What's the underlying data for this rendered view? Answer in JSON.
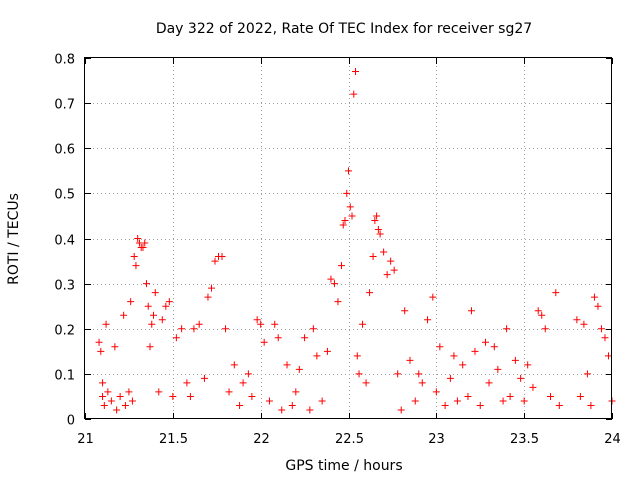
{
  "chart_data": {
    "type": "scatter",
    "title": "Day 322 of 2022, Rate Of TEC Index for receiver sg27",
    "xlabel": "GPS time / hours",
    "ylabel": "ROTI / TECUs",
    "xlim": [
      21,
      24
    ],
    "ylim": [
      0,
      0.8
    ],
    "xticks": [
      21,
      21.5,
      22,
      22.5,
      23,
      23.5,
      24
    ],
    "xtick_labels": [
      "21",
      "21.5",
      "22",
      "22.5",
      "23",
      "23.5",
      "24"
    ],
    "yticks": [
      0,
      0.1,
      0.2,
      0.3,
      0.4,
      0.5,
      0.6,
      0.7,
      0.8
    ],
    "ytick_labels": [
      "0",
      "0.1",
      "0.2",
      "0.3",
      "0.4",
      "0.5",
      "0.6",
      "0.7",
      "0.8"
    ],
    "grid": true,
    "marker": "plus",
    "color": "#ff0000",
    "series": [
      {
        "name": "ROTI",
        "points": [
          [
            21.08,
            0.17
          ],
          [
            21.09,
            0.15
          ],
          [
            21.1,
            0.08
          ],
          [
            21.1,
            0.05
          ],
          [
            21.11,
            0.03
          ],
          [
            21.12,
            0.21
          ],
          [
            21.13,
            0.06
          ],
          [
            21.15,
            0.04
          ],
          [
            21.17,
            0.16
          ],
          [
            21.18,
            0.02
          ],
          [
            21.2,
            0.05
          ],
          [
            21.22,
            0.23
          ],
          [
            21.23,
            0.03
          ],
          [
            21.25,
            0.06
          ],
          [
            21.26,
            0.26
          ],
          [
            21.27,
            0.04
          ],
          [
            21.28,
            0.36
          ],
          [
            21.29,
            0.34
          ],
          [
            21.3,
            0.4
          ],
          [
            21.31,
            0.39
          ],
          [
            21.32,
            0.38
          ],
          [
            21.33,
            0.38
          ],
          [
            21.34,
            0.39
          ],
          [
            21.35,
            0.3
          ],
          [
            21.36,
            0.25
          ],
          [
            21.37,
            0.16
          ],
          [
            21.38,
            0.21
          ],
          [
            21.39,
            0.23
          ],
          [
            21.4,
            0.28
          ],
          [
            21.42,
            0.06
          ],
          [
            21.44,
            0.22
          ],
          [
            21.46,
            0.25
          ],
          [
            21.48,
            0.26
          ],
          [
            21.5,
            0.05
          ],
          [
            21.52,
            0.18
          ],
          [
            21.55,
            0.2
          ],
          [
            21.58,
            0.08
          ],
          [
            21.6,
            0.05
          ],
          [
            21.62,
            0.2
          ],
          [
            21.65,
            0.21
          ],
          [
            21.68,
            0.09
          ],
          [
            21.7,
            0.27
          ],
          [
            21.72,
            0.29
          ],
          [
            21.74,
            0.35
          ],
          [
            21.76,
            0.36
          ],
          [
            21.78,
            0.36
          ],
          [
            21.8,
            0.2
          ],
          [
            21.82,
            0.06
          ],
          [
            21.85,
            0.12
          ],
          [
            21.88,
            0.03
          ],
          [
            21.9,
            0.08
          ],
          [
            21.93,
            0.1
          ],
          [
            21.95,
            0.05
          ],
          [
            21.98,
            0.22
          ],
          [
            22.0,
            0.21
          ],
          [
            22.02,
            0.17
          ],
          [
            22.05,
            0.04
          ],
          [
            22.08,
            0.21
          ],
          [
            22.1,
            0.18
          ],
          [
            22.12,
            0.02
          ],
          [
            22.15,
            0.12
          ],
          [
            22.18,
            0.03
          ],
          [
            22.2,
            0.06
          ],
          [
            22.22,
            0.11
          ],
          [
            22.25,
            0.18
          ],
          [
            22.28,
            0.02
          ],
          [
            22.3,
            0.2
          ],
          [
            22.32,
            0.14
          ],
          [
            22.35,
            0.04
          ],
          [
            22.38,
            0.15
          ],
          [
            22.4,
            0.31
          ],
          [
            22.42,
            0.3
          ],
          [
            22.44,
            0.26
          ],
          [
            22.46,
            0.34
          ],
          [
            22.47,
            0.43
          ],
          [
            22.48,
            0.44
          ],
          [
            22.49,
            0.5
          ],
          [
            22.5,
            0.55
          ],
          [
            22.51,
            0.47
          ],
          [
            22.52,
            0.45
          ],
          [
            22.53,
            0.72
          ],
          [
            22.54,
            0.77
          ],
          [
            22.55,
            0.14
          ],
          [
            22.56,
            0.1
          ],
          [
            22.58,
            0.21
          ],
          [
            22.6,
            0.08
          ],
          [
            22.62,
            0.28
          ],
          [
            22.64,
            0.36
          ],
          [
            22.65,
            0.44
          ],
          [
            22.66,
            0.45
          ],
          [
            22.67,
            0.42
          ],
          [
            22.68,
            0.41
          ],
          [
            22.7,
            0.37
          ],
          [
            22.72,
            0.32
          ],
          [
            22.74,
            0.35
          ],
          [
            22.76,
            0.33
          ],
          [
            22.78,
            0.1
          ],
          [
            22.8,
            0.02
          ],
          [
            22.82,
            0.24
          ],
          [
            22.85,
            0.13
          ],
          [
            22.88,
            0.04
          ],
          [
            22.9,
            0.1
          ],
          [
            22.92,
            0.08
          ],
          [
            22.95,
            0.22
          ],
          [
            22.98,
            0.27
          ],
          [
            23.0,
            0.06
          ],
          [
            23.02,
            0.16
          ],
          [
            23.05,
            0.03
          ],
          [
            23.08,
            0.09
          ],
          [
            23.1,
            0.14
          ],
          [
            23.12,
            0.04
          ],
          [
            23.15,
            0.12
          ],
          [
            23.18,
            0.05
          ],
          [
            23.2,
            0.24
          ],
          [
            23.22,
            0.15
          ],
          [
            23.25,
            0.03
          ],
          [
            23.28,
            0.17
          ],
          [
            23.3,
            0.08
          ],
          [
            23.33,
            0.16
          ],
          [
            23.35,
            0.11
          ],
          [
            23.38,
            0.04
          ],
          [
            23.4,
            0.2
          ],
          [
            23.42,
            0.05
          ],
          [
            23.45,
            0.13
          ],
          [
            23.48,
            0.09
          ],
          [
            23.5,
            0.04
          ],
          [
            23.52,
            0.12
          ],
          [
            23.55,
            0.07
          ],
          [
            23.58,
            0.24
          ],
          [
            23.6,
            0.23
          ],
          [
            23.62,
            0.2
          ],
          [
            23.65,
            0.05
          ],
          [
            23.68,
            0.28
          ],
          [
            23.7,
            0.03
          ],
          [
            23.8,
            0.22
          ],
          [
            23.82,
            0.05
          ],
          [
            23.84,
            0.21
          ],
          [
            23.86,
            0.1
          ],
          [
            23.88,
            0.03
          ],
          [
            23.9,
            0.27
          ],
          [
            23.92,
            0.25
          ],
          [
            23.94,
            0.2
          ],
          [
            23.96,
            0.18
          ],
          [
            23.98,
            0.14
          ],
          [
            24.0,
            0.04
          ]
        ]
      }
    ]
  }
}
